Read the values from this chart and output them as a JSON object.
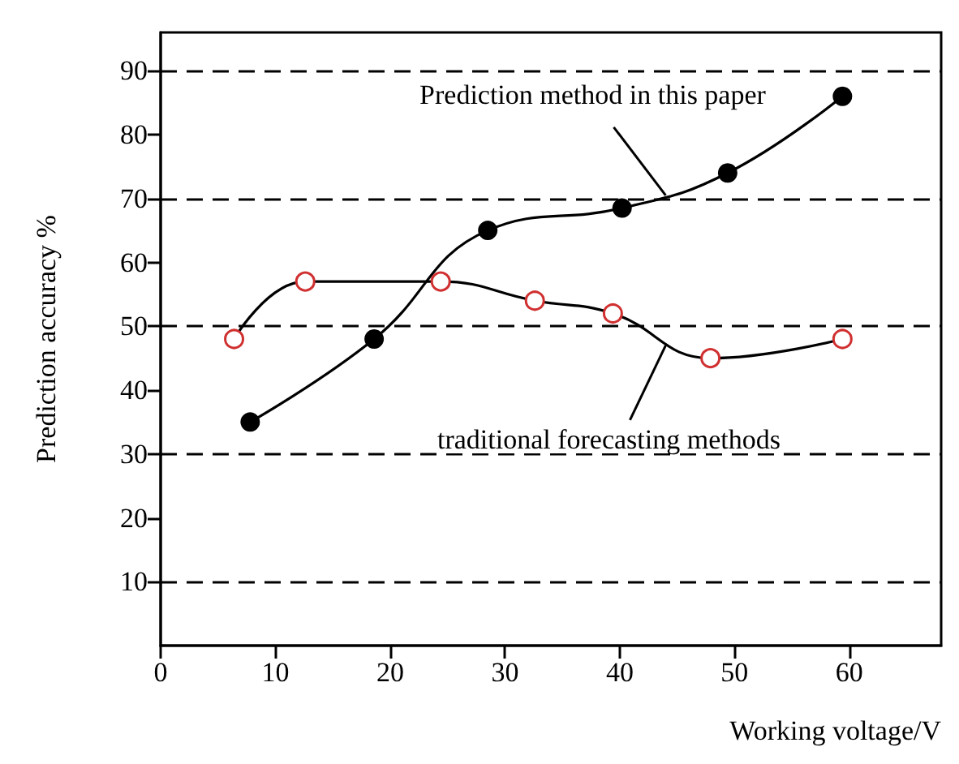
{
  "chart_data": {
    "type": "line",
    "xlabel": "Working voltage/V",
    "ylabel": "Prediction accuracy %",
    "xlim": [
      0,
      68
    ],
    "xticks": [
      0,
      10,
      20,
      30,
      40,
      50,
      60
    ],
    "ylim": [
      0,
      96
    ],
    "yticks": [
      10,
      20,
      30,
      40,
      50,
      60,
      70,
      80,
      90
    ],
    "grid": false,
    "marker": "circle",
    "line_style": "solid",
    "ref_lines": [
      {
        "axis": "y",
        "value": 10,
        "line_style": "dashed"
      },
      {
        "axis": "y",
        "value": 30,
        "line_style": "dashed"
      },
      {
        "axis": "y",
        "value": 50,
        "line_style": "dashed"
      },
      {
        "axis": "y",
        "value": 70,
        "line_style": "dashed"
      },
      {
        "axis": "y",
        "value": 90,
        "line_style": "dashed"
      }
    ],
    "series": [
      {
        "color": "#000000",
        "x": [
          7.8,
          18.6,
          28.5,
          40.2,
          49.4,
          59.4
        ],
        "values": [
          35,
          48,
          65,
          68.5,
          74,
          86
        ]
      },
      {
        "color": "#d03030",
        "x": [
          6.4,
          12.6,
          24.4,
          32.6,
          39.4,
          47.9,
          59.4
        ],
        "values": [
          48,
          57,
          57,
          54,
          52,
          45,
          48
        ]
      }
    ],
    "annotations": [
      {
        "text": "Prediction method in this paper",
        "x": 44,
        "y": 70.5
      },
      {
        "text": "traditional forecasting methods",
        "x": 44,
        "y": 47
      }
    ]
  }
}
